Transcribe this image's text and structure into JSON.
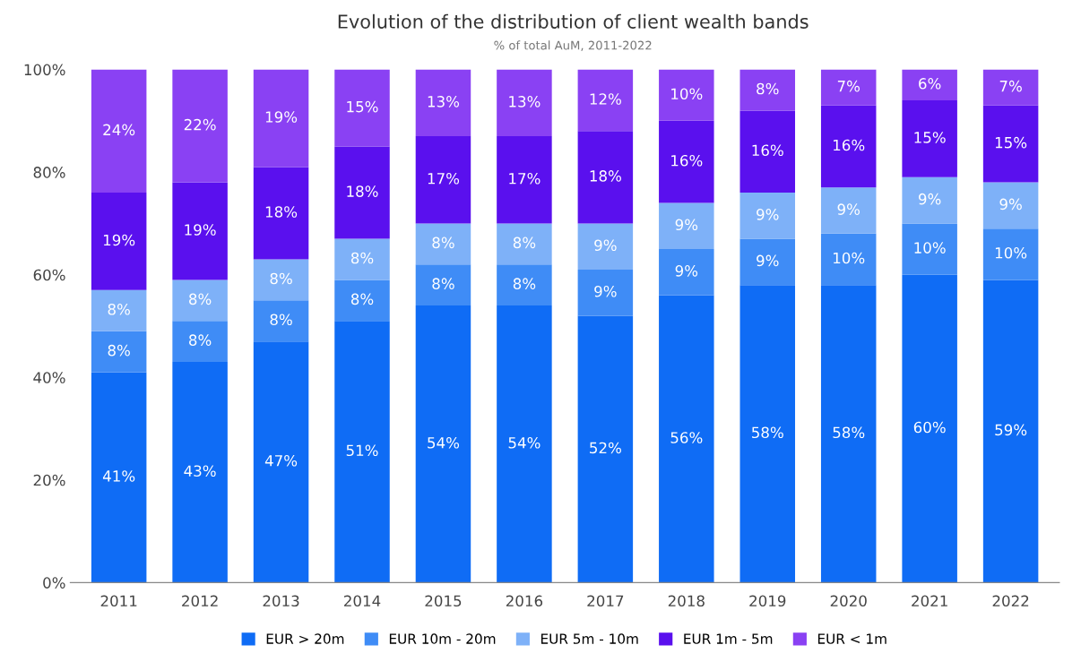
{
  "chart_data": {
    "type": "bar",
    "stacked": true,
    "title": "Evolution of the distribution of client wealth bands",
    "subtitle": "% of total AuM, 2011-2022",
    "categories": [
      "2011",
      "2012",
      "2013",
      "2014",
      "2015",
      "2016",
      "2017",
      "2018",
      "2019",
      "2020",
      "2021",
      "2022"
    ],
    "series": [
      {
        "name": "EUR > 20m",
        "color": "#0f6cf5",
        "values": [
          41,
          43,
          47,
          51,
          54,
          54,
          52,
          56,
          58,
          58,
          60,
          59
        ],
        "value_labels": [
          "41%",
          "43%",
          "47%",
          "51%",
          "54%",
          "54%",
          "52%",
          "56%",
          "58%",
          "58%",
          "60%",
          "59%"
        ]
      },
      {
        "name": "EUR 10m - 20m",
        "color": "#3f8cf6",
        "values": [
          8,
          8,
          8,
          8,
          8,
          8,
          9,
          9,
          9,
          10,
          10,
          10
        ],
        "value_labels": [
          "8%",
          "8%",
          "8%",
          "8%",
          "8%",
          "8%",
          "9%",
          "9%",
          "9%",
          "10%",
          "10%",
          "10%"
        ]
      },
      {
        "name": "EUR 5m - 10m",
        "color": "#7eb1f8",
        "values": [
          8,
          8,
          8,
          8,
          8,
          8,
          9,
          9,
          9,
          9,
          9,
          9
        ],
        "value_labels": [
          "8%",
          "8%",
          "8%",
          "8%",
          "8%",
          "8%",
          "9%",
          "9%",
          "9%",
          "9%",
          "9%",
          "9%"
        ]
      },
      {
        "name": "EUR 1m - 5m",
        "color": "#5a10ee",
        "values": [
          19,
          19,
          18,
          18,
          17,
          17,
          18,
          16,
          16,
          16,
          15,
          15
        ],
        "value_labels": [
          "19%",
          "19%",
          "18%",
          "18%",
          "17%",
          "17%",
          "18%",
          "16%",
          "16%",
          "16%",
          "15%",
          "15%"
        ]
      },
      {
        "name": "EUR < 1m",
        "color": "#8a41f3",
        "values": [
          24,
          22,
          19,
          15,
          13,
          13,
          12,
          10,
          8,
          7,
          6,
          7
        ],
        "value_labels": [
          "24%",
          "22%",
          "19%",
          "15%",
          "13%",
          "13%",
          "12%",
          "10%",
          "8%",
          "7%",
          "6%",
          "7%"
        ]
      }
    ],
    "ylim": [
      0,
      100
    ],
    "yticks": [
      {
        "value": 0,
        "label": "0%"
      },
      {
        "value": 20,
        "label": "20%"
      },
      {
        "value": 40,
        "label": "40%"
      },
      {
        "value": 60,
        "label": "60%"
      },
      {
        "value": 80,
        "label": "80%"
      },
      {
        "value": 100,
        "label": "100%"
      }
    ],
    "grid": false,
    "legend": "bottom"
  }
}
